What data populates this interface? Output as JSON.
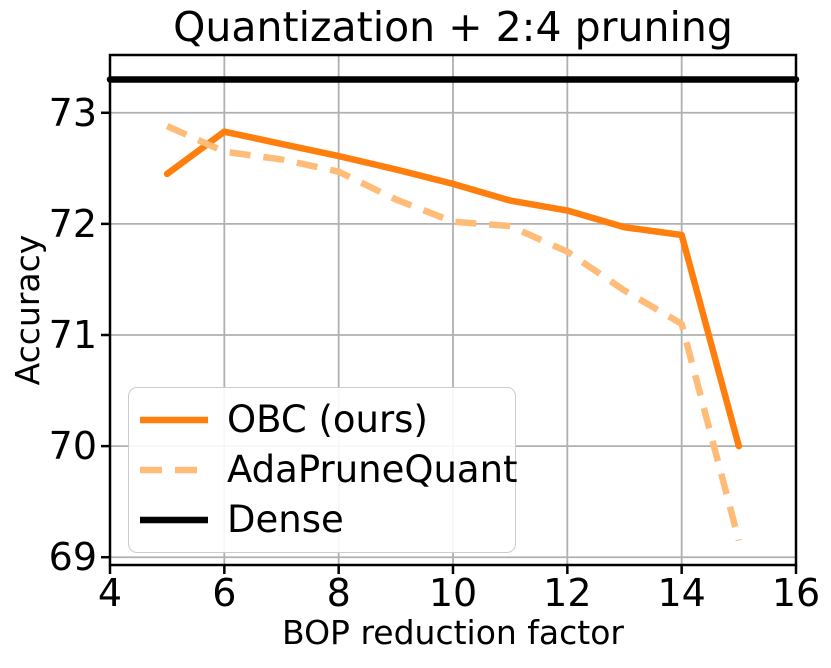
{
  "chart_data": {
    "type": "line",
    "title": "Quantization + 2:4 pruning",
    "xlabel": "BOP reduction factor",
    "ylabel": "Accuracy",
    "xlim": [
      4,
      16
    ],
    "ylim": [
      68.93,
      73.52
    ],
    "xticks": [
      4,
      6,
      8,
      10,
      12,
      14,
      16
    ],
    "yticks": [
      69,
      70,
      71,
      72,
      73
    ],
    "grid": true,
    "grid_color": "#b0b0b0",
    "axis_color": "#000000",
    "legend_position": "lower-left",
    "series": [
      {
        "name": "OBC (ours)",
        "color": "#ff7f0e",
        "line_style": "solid",
        "x": [
          5,
          6,
          7,
          8,
          9,
          10,
          11,
          12,
          13,
          14,
          15
        ],
        "y": [
          72.45,
          72.83,
          72.72,
          72.61,
          72.49,
          72.36,
          72.21,
          72.12,
          71.97,
          71.9,
          70.0
        ]
      },
      {
        "name": "AdaPruneQuant",
        "color": "#ffbb78",
        "line_style": "dashed",
        "dash": "21 13",
        "x": [
          5,
          6,
          7,
          8,
          9,
          10,
          11,
          12,
          13,
          14,
          15
        ],
        "y": [
          72.88,
          72.65,
          72.58,
          72.47,
          72.22,
          72.02,
          71.98,
          71.75,
          71.4,
          71.1,
          69.15
        ]
      },
      {
        "name": "Dense",
        "color": "#000000",
        "line_style": "solid",
        "x": [
          4,
          16
        ],
        "y": [
          73.3,
          73.3
        ]
      }
    ]
  }
}
